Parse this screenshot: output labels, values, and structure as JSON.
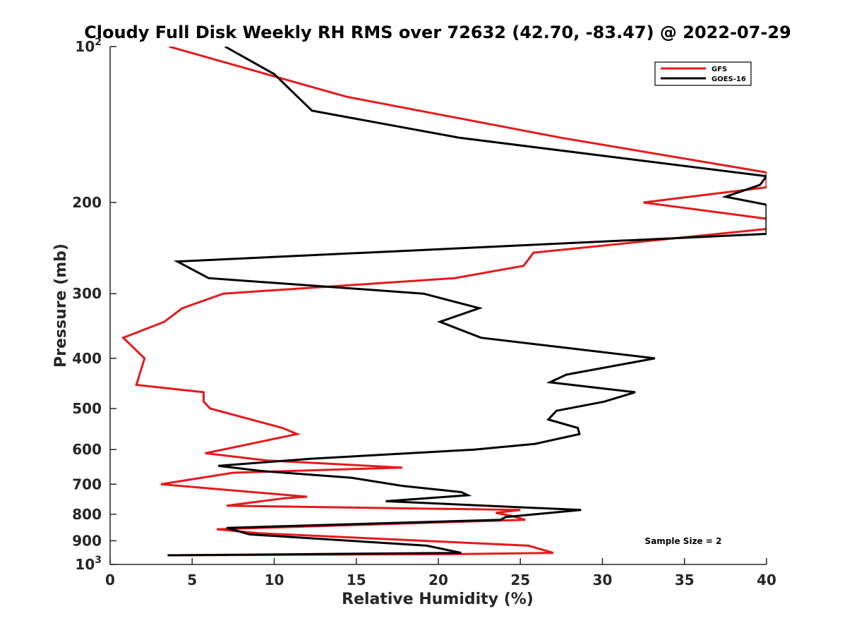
{
  "chart_data": {
    "type": "line",
    "title": "Cloudy Full Disk Weekly RH RMS over 72632 (42.70, -83.47) @ 2022-07-29",
    "xlabel": "Relative Humidity (%)",
    "ylabel": "Pressure (mb)",
    "xlim": [
      0,
      40
    ],
    "ylim": [
      100,
      1000
    ],
    "yscale": "log",
    "y_reversed": true,
    "grid": false,
    "x_ticks": [
      "0",
      "5",
      "10",
      "15",
      "20",
      "25",
      "30",
      "35",
      "40"
    ],
    "y_ticks": [
      {
        "value": 100,
        "base": "10",
        "exp": "2"
      },
      {
        "value": 200,
        "label": "200"
      },
      {
        "value": 300,
        "label": "300"
      },
      {
        "value": 400,
        "label": "400"
      },
      {
        "value": 500,
        "label": "500"
      },
      {
        "value": 600,
        "label": "600"
      },
      {
        "value": 700,
        "label": "700"
      },
      {
        "value": 800,
        "label": "800"
      },
      {
        "value": 900,
        "label": "900"
      },
      {
        "value": 1000,
        "base": "10",
        "exp": "3"
      }
    ],
    "legend": {
      "placement": "top-right",
      "entries": [
        "GFS",
        "GOES-16"
      ]
    },
    "annotation": "Sample Size = 2",
    "series": [
      {
        "name": "GFS",
        "color": "#e41a1c",
        "points": [
          [
            3.6,
            100
          ],
          [
            14.4,
            125
          ],
          [
            27.5,
            150
          ],
          [
            40.0,
            175
          ],
          [
            40.0,
            187
          ],
          [
            32.5,
            200
          ],
          [
            40.0,
            215
          ],
          [
            40.0,
            225
          ],
          [
            25.8,
            250
          ],
          [
            25.2,
            265
          ],
          [
            21.0,
            280
          ],
          [
            6.9,
            300
          ],
          [
            4.4,
            320
          ],
          [
            3.3,
            340
          ],
          [
            0.8,
            365
          ],
          [
            2.1,
            400
          ],
          [
            1.6,
            450
          ],
          [
            5.7,
            465
          ],
          [
            5.7,
            485
          ],
          [
            6.1,
            500
          ],
          [
            10.5,
            545
          ],
          [
            11.4,
            560
          ],
          [
            5.8,
            610
          ],
          [
            9.6,
            630
          ],
          [
            17.8,
            650
          ],
          [
            7.5,
            665
          ],
          [
            3.1,
            700
          ],
          [
            6.5,
            715
          ],
          [
            12.0,
            740
          ],
          [
            10.6,
            745
          ],
          [
            7.1,
            770
          ],
          [
            25.0,
            785
          ],
          [
            23.5,
            795
          ],
          [
            24.4,
            805
          ],
          [
            25.3,
            820
          ],
          [
            6.5,
            855
          ],
          [
            9.0,
            870
          ],
          [
            25.5,
            920
          ],
          [
            27.0,
            950
          ],
          [
            21.4,
            955
          ],
          [
            3.6,
            960
          ]
        ]
      },
      {
        "name": "GOES-16",
        "color": "#000000",
        "points": [
          [
            7.0,
            100
          ],
          [
            10.0,
            113
          ],
          [
            12.3,
            133
          ],
          [
            21.3,
            150
          ],
          [
            40.0,
            178
          ],
          [
            39.6,
            185
          ],
          [
            37.5,
            195
          ],
          [
            40.0,
            202
          ],
          [
            40.0,
            230
          ],
          [
            4.1,
            260
          ],
          [
            6.0,
            280
          ],
          [
            19.1,
            300
          ],
          [
            22.5,
            320
          ],
          [
            20.1,
            340
          ],
          [
            22.6,
            365
          ],
          [
            33.2,
            400
          ],
          [
            27.8,
            430
          ],
          [
            26.8,
            445
          ],
          [
            32.0,
            465
          ],
          [
            30.1,
            485
          ],
          [
            27.2,
            505
          ],
          [
            26.7,
            525
          ],
          [
            28.5,
            545
          ],
          [
            28.6,
            560
          ],
          [
            25.9,
            585
          ],
          [
            22.2,
            600
          ],
          [
            12.2,
            625
          ],
          [
            6.6,
            645
          ],
          [
            9.2,
            660
          ],
          [
            14.7,
            680
          ],
          [
            17.8,
            705
          ],
          [
            21.4,
            725
          ],
          [
            21.8,
            735
          ],
          [
            16.8,
            755
          ],
          [
            28.7,
            785
          ],
          [
            24.1,
            810
          ],
          [
            23.8,
            820
          ],
          [
            7.1,
            850
          ],
          [
            8.5,
            875
          ],
          [
            19.3,
            920
          ],
          [
            21.4,
            950
          ],
          [
            3.5,
            960
          ]
        ]
      }
    ]
  }
}
